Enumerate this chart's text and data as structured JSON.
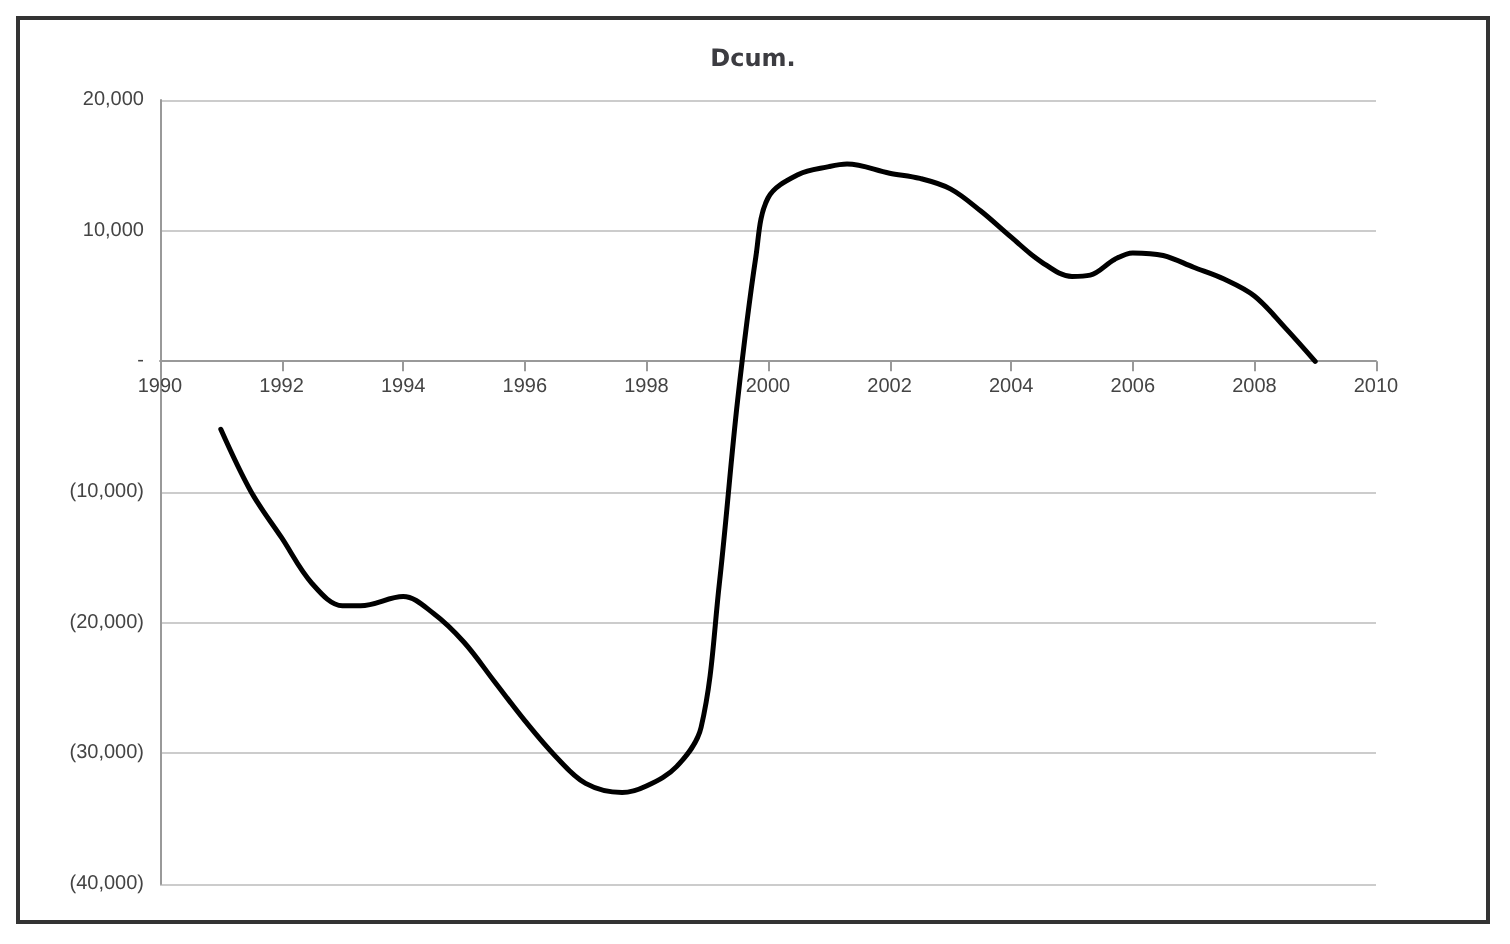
{
  "chart_data": {
    "type": "line",
    "title": "Dcum.",
    "x": [
      1991,
      1991.5,
      1992,
      1992.5,
      1993,
      1993.3,
      1994,
      1994.5,
      1995,
      1995.5,
      1996,
      1996.5,
      1997,
      1997.6,
      1998,
      1998.5,
      1998.9,
      1999.2,
      1999.5,
      1999.8,
      2000,
      2000.5,
      2001,
      2001.3,
      2002,
      2002.5,
      2003,
      2003.5,
      2004,
      2004.5,
      2005,
      2005.3,
      2005.7,
      2006,
      2006.5,
      2007,
      2007.5,
      2008,
      2008.5,
      2009
    ],
    "series": [
      {
        "color": "#000000",
        "values": [
          -5200,
          -10000,
          -13500,
          -17000,
          -18700,
          -18700,
          -18000,
          -19300,
          -21500,
          -24500,
          -27500,
          -30200,
          -32300,
          -33000,
          -32500,
          -31000,
          -28000,
          -17000,
          -3000,
          8000,
          12500,
          14300,
          14900,
          15100,
          14400,
          14000,
          13200,
          11500,
          9500,
          7600,
          6500,
          6600,
          7800,
          8300,
          8100,
          7200,
          6300,
          5000,
          2600,
          0
        ]
      }
    ],
    "xlim": [
      1990,
      2010
    ],
    "xticks": [
      1990,
      1992,
      1994,
      1996,
      1998,
      2000,
      2002,
      2004,
      2006,
      2008,
      2010
    ],
    "ylim": [
      -40000,
      20000
    ],
    "yticks": [
      {
        "value": -40000,
        "label": "(40,000)"
      },
      {
        "value": -30000,
        "label": "(30,000)"
      },
      {
        "value": -20000,
        "label": "(20,000)"
      },
      {
        "value": -10000,
        "label": "(10,000)"
      },
      {
        "value": 0,
        "label": "-"
      },
      {
        "value": 10000,
        "label": "10,000"
      },
      {
        "value": 20000,
        "label": "20,000"
      }
    ],
    "grid": "y",
    "marker": "none",
    "line_style": "solid"
  }
}
